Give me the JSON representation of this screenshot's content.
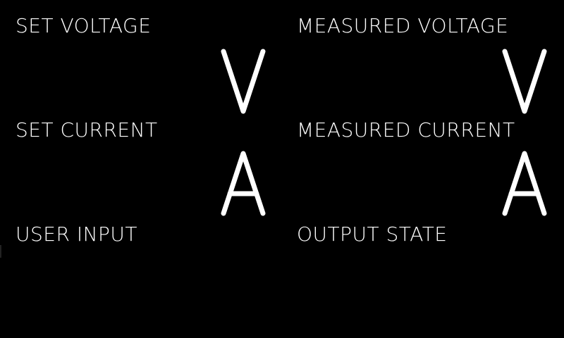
{
  "screen": {
    "background": "#000000",
    "foreground": "#ffffff"
  },
  "set_voltage": {
    "label": "SET VOLTAGE",
    "value": "",
    "unit": "V",
    "unit_icon": "volt-unit-glyph"
  },
  "set_current": {
    "label": "SET CURRENT",
    "value": "",
    "unit": "A",
    "unit_icon": "ampere-unit-glyph"
  },
  "user_input": {
    "label": "USER INPUT",
    "value": ""
  },
  "measured_voltage": {
    "label": "MEASURED VOLTAGE",
    "value": "",
    "unit": "V",
    "unit_icon": "volt-unit-glyph"
  },
  "measured_current": {
    "label": "MEASURED CURRENT",
    "value": "",
    "unit": "A",
    "unit_icon": "ampere-unit-glyph"
  },
  "output_state": {
    "label": "OUTPUT STATE",
    "value": ""
  }
}
